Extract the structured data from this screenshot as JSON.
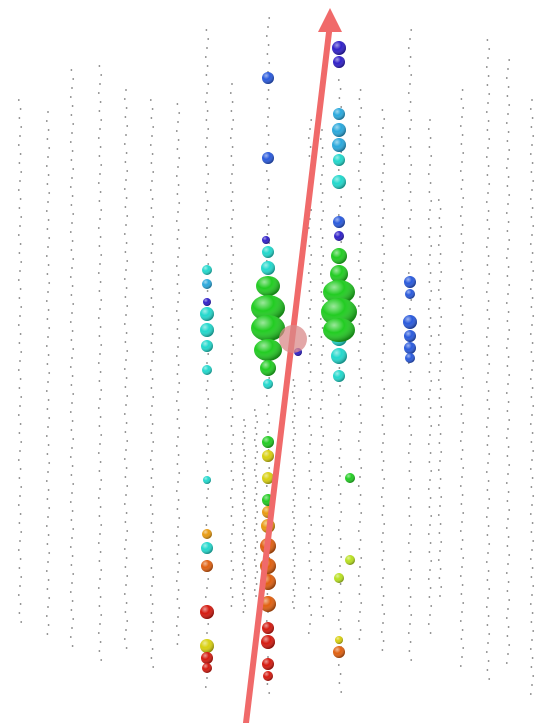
{
  "scene": {
    "background": "#ffffff",
    "grid_dot_color": "#7a7a7a",
    "track_color": "#f06a6a",
    "vertex_color": "#d98a8a",
    "hit_palette": {
      "red": "#d41a10",
      "orange": "#e06010",
      "amber": "#e89a10",
      "yellow": "#d8d010",
      "lime": "#b8e020",
      "green": "#22cc22",
      "cyan": "#22d8cc",
      "sky": "#2aa8dc",
      "blue": "#2a5adc",
      "indigo": "#3020c8"
    }
  }
}
